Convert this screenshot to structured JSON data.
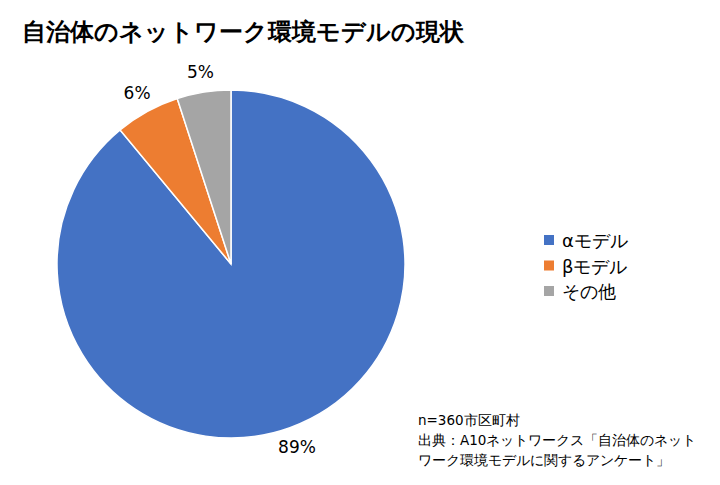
{
  "chart_data": {
    "type": "pie",
    "title": "自治体のネットワーク環境モデルの現状",
    "categories": [
      "αモデル",
      "βモデル",
      "その他"
    ],
    "values": [
      89,
      6,
      5
    ],
    "value_labels": [
      "89%",
      "6%",
      "5%"
    ],
    "colors": [
      "#4472c4",
      "#ed7d31",
      "#a5a5a5"
    ],
    "data_labels": true,
    "legend": "right",
    "annotations": [
      "n=360市区町村",
      "出典：A10ネットワークス「自治体のネット",
      "ワーク環境モデルに関するアンケート」"
    ]
  }
}
